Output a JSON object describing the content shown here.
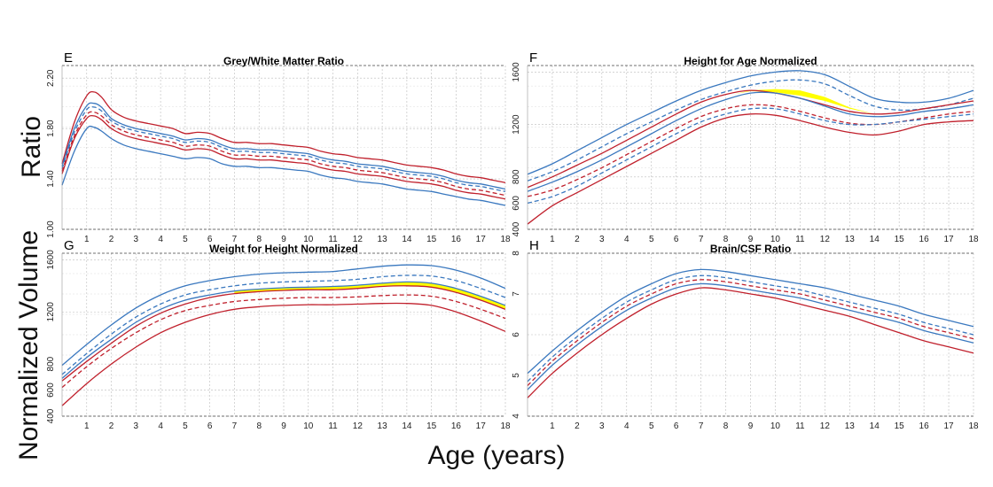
{
  "figure": {
    "ylabel_top": "Ratio",
    "ylabel_bottom": "Normalized Volume",
    "xlabel": "Age (years)"
  },
  "colors": {
    "red": "#c0202c",
    "blue": "#3a78bf",
    "highlight": "#ffff00",
    "grid": "#bbbbbb"
  },
  "chart_data": [
    {
      "id": "E",
      "type": "line",
      "letter": "E",
      "title": "Grey/White Matter Ratio",
      "xlim": [
        0,
        18
      ],
      "ylim": [
        1.0,
        2.3
      ],
      "xticks": [
        "1",
        "2",
        "3",
        "4",
        "5",
        "6",
        "7",
        "8",
        "9",
        "10",
        "11",
        "12",
        "13",
        "14",
        "15",
        "16",
        "17",
        "18"
      ],
      "yticks": [
        {
          "value": 1.0,
          "label": "1.00"
        },
        {
          "value": 1.4,
          "label": "1.40"
        },
        {
          "value": 1.8,
          "label": "1.80"
        },
        {
          "value": 2.2,
          "label": "2.20"
        }
      ],
      "x": [
        0,
        0.5,
        1,
        1.3,
        1.6,
        2,
        2.5,
        3,
        3.5,
        4,
        4.5,
        5,
        5.5,
        6,
        6.5,
        7,
        7.5,
        8,
        8.5,
        9,
        9.5,
        10,
        10.5,
        11,
        11.5,
        12,
        12.5,
        13,
        13.5,
        14,
        14.5,
        15,
        15.5,
        16,
        16.5,
        17,
        17.5,
        18
      ],
      "series": [
        {
          "name": "upper red",
          "color": "red",
          "dash": false,
          "values": [
            1.52,
            1.85,
            2.06,
            2.09,
            2.05,
            1.95,
            1.89,
            1.86,
            1.84,
            1.82,
            1.8,
            1.76,
            1.77,
            1.76,
            1.72,
            1.69,
            1.69,
            1.68,
            1.68,
            1.67,
            1.66,
            1.65,
            1.62,
            1.6,
            1.59,
            1.57,
            1.56,
            1.55,
            1.53,
            1.51,
            1.5,
            1.49,
            1.47,
            1.44,
            1.42,
            1.41,
            1.39,
            1.37
          ]
        },
        {
          "name": "upper blue",
          "color": "blue",
          "dash": false,
          "values": [
            1.5,
            1.8,
            1.98,
            2.0,
            1.97,
            1.88,
            1.83,
            1.8,
            1.78,
            1.76,
            1.74,
            1.71,
            1.72,
            1.71,
            1.67,
            1.64,
            1.64,
            1.63,
            1.63,
            1.62,
            1.61,
            1.6,
            1.57,
            1.55,
            1.54,
            1.52,
            1.51,
            1.5,
            1.48,
            1.46,
            1.45,
            1.44,
            1.42,
            1.39,
            1.37,
            1.36,
            1.34,
            1.32
          ]
        },
        {
          "name": "upper blue dashed",
          "color": "blue",
          "dash": true,
          "values": [
            1.48,
            1.77,
            1.95,
            1.97,
            1.94,
            1.86,
            1.81,
            1.78,
            1.76,
            1.74,
            1.72,
            1.69,
            1.7,
            1.69,
            1.65,
            1.62,
            1.62,
            1.61,
            1.61,
            1.6,
            1.59,
            1.58,
            1.55,
            1.53,
            1.52,
            1.5,
            1.49,
            1.48,
            1.46,
            1.44,
            1.43,
            1.42,
            1.4,
            1.37,
            1.35,
            1.34,
            1.32,
            1.3
          ]
        },
        {
          "name": "mid red dashed",
          "color": "red",
          "dash": true,
          "values": [
            1.46,
            1.74,
            1.91,
            1.93,
            1.9,
            1.83,
            1.78,
            1.75,
            1.73,
            1.71,
            1.69,
            1.66,
            1.67,
            1.66,
            1.62,
            1.59,
            1.59,
            1.58,
            1.58,
            1.57,
            1.56,
            1.55,
            1.52,
            1.5,
            1.49,
            1.47,
            1.46,
            1.45,
            1.43,
            1.41,
            1.4,
            1.39,
            1.37,
            1.34,
            1.32,
            1.31,
            1.29,
            1.27
          ]
        },
        {
          "name": "mid red",
          "color": "red",
          "dash": false,
          "values": [
            1.44,
            1.72,
            1.88,
            1.9,
            1.87,
            1.8,
            1.75,
            1.72,
            1.7,
            1.68,
            1.66,
            1.63,
            1.64,
            1.63,
            1.59,
            1.56,
            1.56,
            1.55,
            1.55,
            1.54,
            1.53,
            1.52,
            1.49,
            1.47,
            1.46,
            1.44,
            1.43,
            1.42,
            1.4,
            1.38,
            1.37,
            1.36,
            1.34,
            1.31,
            1.29,
            1.28,
            1.26,
            1.24
          ]
        },
        {
          "name": "lower blue",
          "color": "blue",
          "dash": false,
          "values": [
            1.35,
            1.62,
            1.8,
            1.81,
            1.78,
            1.72,
            1.67,
            1.64,
            1.62,
            1.6,
            1.58,
            1.56,
            1.57,
            1.56,
            1.52,
            1.5,
            1.5,
            1.49,
            1.49,
            1.48,
            1.47,
            1.46,
            1.43,
            1.41,
            1.4,
            1.38,
            1.37,
            1.36,
            1.34,
            1.32,
            1.31,
            1.3,
            1.28,
            1.26,
            1.24,
            1.23,
            1.21,
            1.19
          ]
        }
      ],
      "highlight": null
    },
    {
      "id": "F",
      "type": "line",
      "letter": "F",
      "title": "Height for Age Normalized",
      "xlim": [
        0,
        18
      ],
      "ylim": [
        400,
        1650
      ],
      "xticks": [
        "1",
        "2",
        "3",
        "4",
        "5",
        "6",
        "7",
        "8",
        "9",
        "10",
        "11",
        "12",
        "13",
        "14",
        "15",
        "16",
        "17",
        "18"
      ],
      "yticks": [
        {
          "value": 400,
          "label": "400"
        },
        {
          "value": 600,
          "label": "600"
        },
        {
          "value": 800,
          "label": "800"
        },
        {
          "value": 1200,
          "label": "1200"
        },
        {
          "value": 1600,
          "label": "1600"
        }
      ],
      "x": [
        0,
        1,
        2,
        3,
        4,
        5,
        6,
        7,
        8,
        9,
        10,
        11,
        12,
        13,
        14,
        15,
        16,
        17,
        18
      ],
      "series": [
        {
          "name": "upper blue",
          "color": "blue",
          "dash": false,
          "values": [
            820,
            900,
            1000,
            1100,
            1200,
            1290,
            1380,
            1460,
            1520,
            1570,
            1600,
            1610,
            1580,
            1490,
            1400,
            1370,
            1370,
            1400,
            1460
          ]
        },
        {
          "name": "upper blue dashed",
          "color": "blue",
          "dash": true,
          "values": [
            770,
            840,
            930,
            1030,
            1130,
            1220,
            1310,
            1390,
            1450,
            1500,
            1530,
            1540,
            1510,
            1420,
            1340,
            1310,
            1320,
            1350,
            1400
          ]
        },
        {
          "name": "upper red",
          "color": "red",
          "dash": false,
          "values": [
            720,
            800,
            890,
            980,
            1080,
            1180,
            1280,
            1370,
            1430,
            1460,
            1440,
            1400,
            1350,
            1300,
            1280,
            1290,
            1320,
            1350,
            1380
          ]
        },
        {
          "name": "middle blue",
          "color": "blue",
          "dash": false,
          "values": [
            690,
            760,
            840,
            930,
            1030,
            1130,
            1230,
            1320,
            1390,
            1440,
            1440,
            1400,
            1340,
            1280,
            1260,
            1270,
            1300,
            1320,
            1350
          ]
        },
        {
          "name": "lower red dashed",
          "color": "red",
          "dash": true,
          "values": [
            650,
            700,
            780,
            870,
            970,
            1070,
            1170,
            1260,
            1320,
            1350,
            1340,
            1300,
            1250,
            1210,
            1200,
            1220,
            1250,
            1280,
            1300
          ]
        },
        {
          "name": "lower blue dashed",
          "color": "blue",
          "dash": true,
          "values": [
            600,
            650,
            730,
            830,
            930,
            1030,
            1130,
            1220,
            1280,
            1320,
            1320,
            1280,
            1230,
            1200,
            1200,
            1220,
            1240,
            1260,
            1280
          ]
        },
        {
          "name": "lower red",
          "color": "red",
          "dash": false,
          "values": [
            440,
            580,
            680,
            780,
            880,
            980,
            1080,
            1180,
            1250,
            1280,
            1270,
            1230,
            1180,
            1140,
            1120,
            1150,
            1200,
            1220,
            1230
          ]
        }
      ],
      "highlight": {
        "x": [
          8.3,
          9,
          10,
          11,
          12,
          13,
          14
        ],
        "upper": [
          1430,
          1460,
          1470,
          1460,
          1410,
          1330,
          1280
        ],
        "lower": [
          1430,
          1455,
          1445,
          1420,
          1380,
          1320,
          1280
        ]
      }
    },
    {
      "id": "G",
      "type": "line",
      "letter": "G",
      "title": "Weight for Height Normalized",
      "xlim": [
        0,
        18
      ],
      "ylim": [
        400,
        1650
      ],
      "xticks": [
        "1",
        "2",
        "3",
        "4",
        "5",
        "6",
        "7",
        "8",
        "9",
        "10",
        "11",
        "12",
        "13",
        "14",
        "15",
        "16",
        "17",
        "18"
      ],
      "yticks": [
        {
          "value": 400,
          "label": "400"
        },
        {
          "value": 600,
          "label": "600"
        },
        {
          "value": 800,
          "label": "800"
        },
        {
          "value": 1200,
          "label": "1200"
        },
        {
          "value": 1600,
          "label": "1600"
        }
      ],
      "x": [
        0,
        1,
        2,
        3,
        4,
        5,
        6,
        7,
        8,
        9,
        10,
        11,
        12,
        13,
        14,
        15,
        16,
        17,
        18
      ],
      "series": [
        {
          "name": "upper blue",
          "color": "blue",
          "dash": false,
          "values": [
            790,
            950,
            1100,
            1230,
            1330,
            1400,
            1440,
            1470,
            1490,
            1500,
            1505,
            1510,
            1530,
            1550,
            1560,
            1555,
            1520,
            1460,
            1380
          ]
        },
        {
          "name": "upper blue dashed",
          "color": "blue",
          "dash": true,
          "values": [
            720,
            880,
            1030,
            1160,
            1260,
            1330,
            1370,
            1400,
            1420,
            1430,
            1435,
            1440,
            1450,
            1470,
            1480,
            1475,
            1440,
            1380,
            1310
          ]
        },
        {
          "name": "highlight top",
          "color": "blue",
          "dash": false,
          "values": [
            690,
            850,
            990,
            1120,
            1220,
            1290,
            1330,
            1360,
            1375,
            1385,
            1390,
            1395,
            1405,
            1420,
            1430,
            1420,
            1380,
            1320,
            1250
          ]
        },
        {
          "name": "red solid upper",
          "color": "red",
          "dash": false,
          "values": [
            670,
            820,
            960,
            1090,
            1190,
            1260,
            1310,
            1340,
            1355,
            1365,
            1370,
            1370,
            1380,
            1395,
            1400,
            1390,
            1350,
            1290,
            1220
          ]
        },
        {
          "name": "red dashed",
          "color": "red",
          "dash": true,
          "values": [
            620,
            780,
            920,
            1040,
            1140,
            1210,
            1250,
            1280,
            1295,
            1305,
            1310,
            1310,
            1315,
            1325,
            1330,
            1320,
            1280,
            1220,
            1150
          ]
        },
        {
          "name": "lower red",
          "color": "red",
          "dash": false,
          "values": [
            480,
            650,
            800,
            930,
            1040,
            1120,
            1180,
            1220,
            1240,
            1250,
            1255,
            1255,
            1260,
            1265,
            1265,
            1250,
            1200,
            1130,
            1050
          ]
        }
      ],
      "highlight": {
        "x": [
          7,
          8,
          9,
          10,
          11,
          12,
          13,
          14,
          15,
          16,
          17,
          18
        ],
        "upper": [
          1360,
          1375,
          1385,
          1390,
          1395,
          1405,
          1420,
          1430,
          1420,
          1380,
          1320,
          1250
        ],
        "lower": [
          1340,
          1355,
          1365,
          1370,
          1370,
          1380,
          1395,
          1400,
          1390,
          1350,
          1290,
          1220
        ]
      }
    },
    {
      "id": "H",
      "type": "line",
      "letter": "H",
      "title": "Brain/CSF Ratio",
      "xlim": [
        0,
        18
      ],
      "ylim": [
        4,
        8
      ],
      "xticks": [
        "1",
        "2",
        "3",
        "4",
        "5",
        "6",
        "7",
        "8",
        "9",
        "10",
        "11",
        "12",
        "13",
        "14",
        "15",
        "16",
        "17",
        "18"
      ],
      "yticks": [
        {
          "value": 4,
          "label": "4"
        },
        {
          "value": 5,
          "label": "5"
        },
        {
          "value": 6,
          "label": "6"
        },
        {
          "value": 7,
          "label": "7"
        },
        {
          "value": 8,
          "label": "8"
        }
      ],
      "x": [
        0,
        1,
        2,
        3,
        4,
        5,
        6,
        7,
        8,
        9,
        10,
        11,
        12,
        13,
        14,
        15,
        16,
        17,
        18
      ],
      "series": [
        {
          "name": "upper blue",
          "color": "blue",
          "dash": false,
          "values": [
            5.05,
            5.6,
            6.1,
            6.55,
            6.95,
            7.25,
            7.5,
            7.6,
            7.55,
            7.45,
            7.35,
            7.25,
            7.15,
            7.0,
            6.85,
            6.7,
            6.5,
            6.35,
            6.2
          ]
        },
        {
          "name": "blue dashed",
          "color": "blue",
          "dash": true,
          "values": [
            4.85,
            5.45,
            5.95,
            6.4,
            6.8,
            7.1,
            7.35,
            7.45,
            7.4,
            7.3,
            7.2,
            7.1,
            6.95,
            6.8,
            6.65,
            6.5,
            6.3,
            6.15,
            6.0
          ]
        },
        {
          "name": "red dashed",
          "color": "red",
          "dash": true,
          "values": [
            4.75,
            5.35,
            5.85,
            6.3,
            6.7,
            7.0,
            7.25,
            7.35,
            7.3,
            7.2,
            7.1,
            7.0,
            6.85,
            6.7,
            6.55,
            6.4,
            6.2,
            6.05,
            5.9
          ]
        },
        {
          "name": "blue solid mid",
          "color": "blue",
          "dash": false,
          "values": [
            4.65,
            5.25,
            5.75,
            6.2,
            6.6,
            6.9,
            7.15,
            7.25,
            7.2,
            7.1,
            7.0,
            6.9,
            6.75,
            6.6,
            6.45,
            6.3,
            6.1,
            5.95,
            5.8
          ]
        },
        {
          "name": "lower red",
          "color": "red",
          "dash": false,
          "values": [
            4.45,
            5.05,
            5.55,
            6.0,
            6.4,
            6.75,
            7.0,
            7.15,
            7.1,
            7.0,
            6.9,
            6.75,
            6.6,
            6.45,
            6.25,
            6.05,
            5.85,
            5.7,
            5.55
          ]
        }
      ],
      "highlight": null
    }
  ]
}
